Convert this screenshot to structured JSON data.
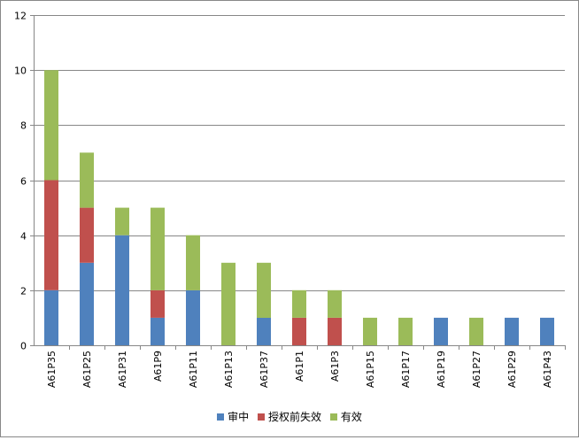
{
  "chart_data": {
    "type": "bar",
    "stacked": true,
    "categories": [
      "A61P35",
      "A61P25",
      "A61P31",
      "A61P9",
      "A61P11",
      "A61P13",
      "A61P37",
      "A61P1",
      "A61P3",
      "A61P15",
      "A61P17",
      "A61P19",
      "A61P27",
      "A61P29",
      "A61P43"
    ],
    "series": [
      {
        "name": "审中",
        "color": "#4F81BD",
        "values": [
          2,
          3,
          4,
          1,
          2,
          0,
          1,
          0,
          0,
          0,
          0,
          1,
          0,
          1,
          1
        ]
      },
      {
        "name": "授权前失效",
        "color": "#C0504D",
        "values": [
          4,
          2,
          0,
          1,
          0,
          0,
          0,
          1,
          1,
          0,
          0,
          0,
          0,
          0,
          0
        ]
      },
      {
        "name": "有效",
        "color": "#9BBB59",
        "values": [
          4,
          2,
          1,
          3,
          2,
          3,
          2,
          1,
          1,
          1,
          1,
          0,
          1,
          0,
          0
        ]
      }
    ],
    "ylim": [
      0,
      12
    ],
    "yticks": [
      0,
      2,
      4,
      6,
      8,
      10,
      12
    ],
    "grid": true,
    "legend": "bottom"
  }
}
